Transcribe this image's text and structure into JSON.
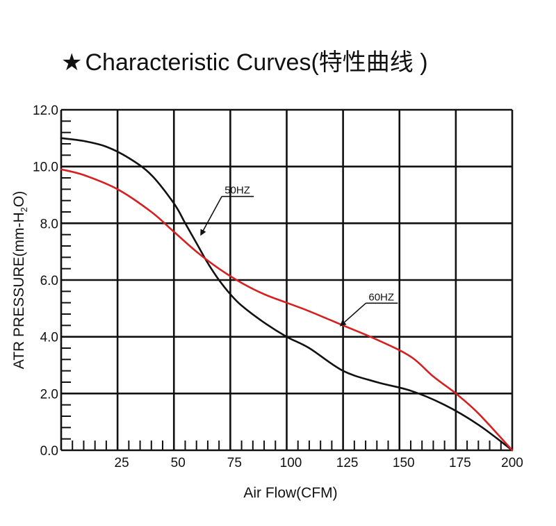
{
  "chart_data": {
    "type": "line",
    "title_star": "★",
    "title": "Characteristic Curves(特性曲线 )",
    "xlabel": "Air Flow(CFM)",
    "ylabel": "ATR PRESSURE(mm-H",
    "ylabel_sub": "2",
    "ylabel_end": "O)",
    "xlim": [
      0,
      200
    ],
    "ylim": [
      0,
      12
    ],
    "grid": true,
    "x_ticks": [
      "25",
      "50",
      "75",
      "100",
      "125",
      "150",
      "175",
      "200"
    ],
    "x_tick_values": [
      25,
      50,
      75,
      100,
      125,
      150,
      175,
      200
    ],
    "y_ticks": [
      "0.0",
      "2.0",
      "4.0",
      "6.0",
      "8.0",
      "10.0",
      "12.0"
    ],
    "y_tick_values": [
      0,
      2,
      4,
      6,
      8,
      10,
      12
    ],
    "series": [
      {
        "name": "50HZ",
        "color": "#111111",
        "x": [
          0,
          10,
          20,
          30,
          40,
          50,
          55,
          60,
          65,
          70,
          75,
          80,
          90,
          100,
          110,
          125,
          140,
          155,
          170,
          185,
          200
        ],
        "y": [
          11.0,
          10.9,
          10.7,
          10.3,
          9.7,
          8.7,
          8.0,
          7.3,
          6.6,
          6.0,
          5.5,
          5.1,
          4.5,
          4.0,
          3.6,
          2.8,
          2.4,
          2.1,
          1.6,
          0.9,
          0.0
        ]
      },
      {
        "name": "60HZ",
        "color": "#d42020",
        "x": [
          0,
          10,
          25,
          40,
          50,
          60,
          70,
          80,
          90,
          100,
          110,
          125,
          140,
          155,
          165,
          175,
          185,
          200
        ],
        "y": [
          9.9,
          9.7,
          9.2,
          8.4,
          7.7,
          7.0,
          6.4,
          5.9,
          5.5,
          5.2,
          4.9,
          4.4,
          3.9,
          3.3,
          2.6,
          2.0,
          1.3,
          0.0
        ]
      }
    ],
    "annotations": [
      {
        "label": "50HZ",
        "series": "50HZ",
        "x": 62,
        "y": 7.6
      },
      {
        "label": "60HZ",
        "series": "60HZ",
        "x": 124,
        "y": 4.4
      }
    ]
  }
}
